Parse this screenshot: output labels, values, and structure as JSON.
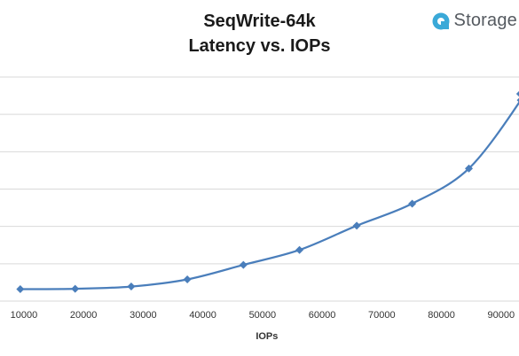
{
  "header": {
    "title_line1": "SeqWrite-64k",
    "title_line2": "Latency vs. IOPs"
  },
  "brand": {
    "name": "Storage",
    "icon": "storage-logo-icon",
    "icon_color": "#3aa9d8"
  },
  "chart_data": {
    "type": "line",
    "title": "SeqWrite-64k Latency vs. IOPs",
    "xlabel": "IOPs",
    "ylabel": "",
    "x_ticks": [
      10000,
      20000,
      30000,
      40000,
      50000,
      60000,
      70000,
      80000,
      90000
    ],
    "xlim": [
      6000,
      93000
    ],
    "ylim": [
      0,
      6
    ],
    "grid": true,
    "line_color": "#4a7ebb",
    "series": [
      {
        "x": [
          9400,
          18600,
          28000,
          37400,
          46800,
          56200,
          65800,
          75100,
          84600,
          93300,
          93200
        ],
        "y": [
          0.32,
          0.33,
          0.39,
          0.58,
          0.97,
          1.37,
          2.02,
          2.61,
          3.55,
          5.38,
          5.55
        ]
      }
    ]
  }
}
